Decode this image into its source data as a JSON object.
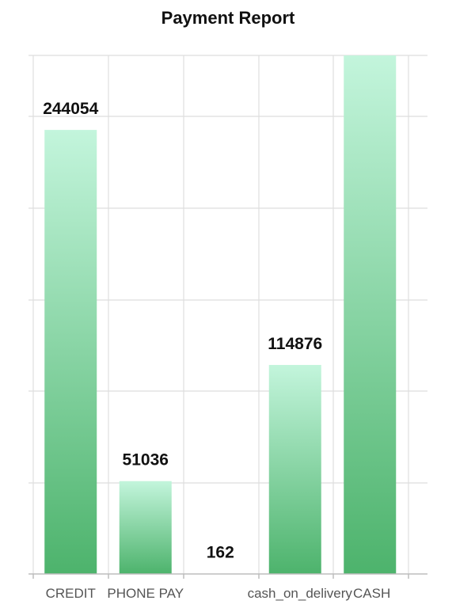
{
  "chart_data": {
    "type": "bar",
    "title": "Payment Report",
    "categories": [
      "CREDIT",
      "PHONE PAY",
      "",
      "cash_on_delivery",
      "CASH"
    ],
    "values": [
      244054,
      51036,
      162,
      114876,
      285000
    ],
    "data_labels": [
      "244054",
      "51036",
      "162",
      "114876",
      ""
    ],
    "ylim": [
      0,
      285000
    ],
    "grid": true,
    "colors": {
      "bar_top": "#c3f5dc",
      "bar_bottom": "#4db36c"
    }
  }
}
